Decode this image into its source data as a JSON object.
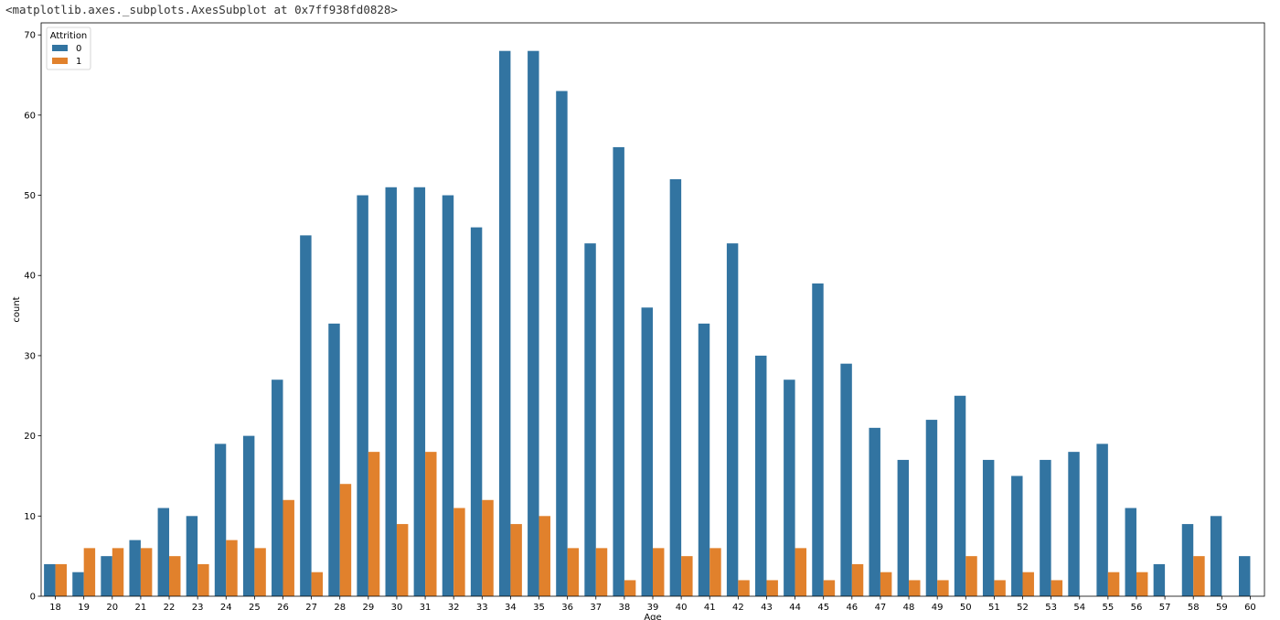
{
  "output_repr": "<matplotlib.axes._subplots.AxesSubplot at 0x7ff938fd0828>",
  "chart_data": {
    "type": "bar",
    "title": "",
    "xlabel": "Age",
    "ylabel": "count",
    "ylim": [
      0,
      71.5
    ],
    "yticks": [
      0,
      10,
      20,
      30,
      40,
      50,
      60,
      70
    ],
    "grid": false,
    "legend": {
      "title": "Attrition",
      "placement": "top-left"
    },
    "categories": [
      "18",
      "19",
      "20",
      "21",
      "22",
      "23",
      "24",
      "25",
      "26",
      "27",
      "28",
      "29",
      "30",
      "31",
      "32",
      "33",
      "34",
      "35",
      "36",
      "37",
      "38",
      "39",
      "40",
      "41",
      "42",
      "43",
      "44",
      "45",
      "46",
      "47",
      "48",
      "49",
      "50",
      "51",
      "52",
      "53",
      "54",
      "55",
      "56",
      "57",
      "58",
      "59",
      "60"
    ],
    "series": [
      {
        "name": "0",
        "color": "#3274a1",
        "values": [
          4,
          3,
          5,
          7,
          11,
          10,
          19,
          20,
          27,
          45,
          34,
          50,
          51,
          51,
          50,
          46,
          68,
          68,
          63,
          44,
          56,
          36,
          52,
          34,
          44,
          30,
          27,
          39,
          29,
          21,
          17,
          22,
          25,
          17,
          15,
          17,
          18,
          19,
          11,
          4,
          9,
          10,
          5
        ]
      },
      {
        "name": "1",
        "color": "#e1812c",
        "values": [
          4,
          6,
          6,
          6,
          5,
          4,
          7,
          6,
          12,
          3,
          14,
          18,
          9,
          18,
          11,
          12,
          9,
          10,
          6,
          6,
          2,
          6,
          5,
          6,
          2,
          2,
          6,
          2,
          4,
          3,
          2,
          2,
          5,
          2,
          3,
          2,
          0,
          3,
          3,
          0,
          5,
          0,
          0
        ]
      }
    ]
  }
}
